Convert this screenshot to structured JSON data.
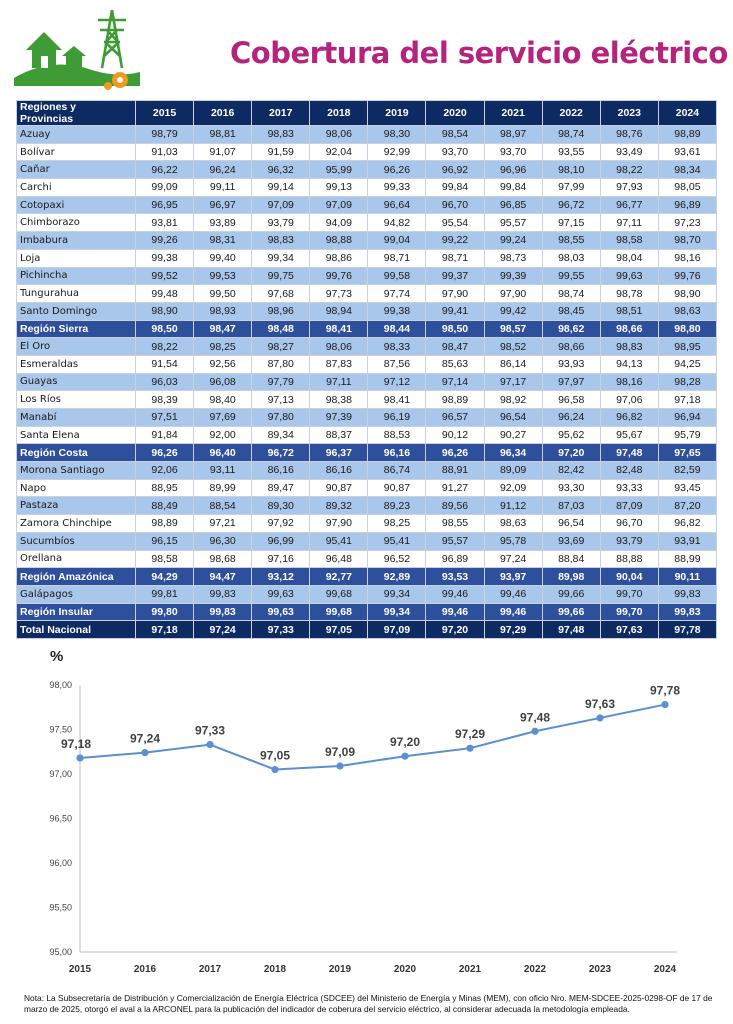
{
  "title": "Cobertura del servicio eléctrico",
  "table": {
    "header": [
      "Regiones y Provincias",
      "2015",
      "2016",
      "2017",
      "2018",
      "2019",
      "2020",
      "2021",
      "2022",
      "2023",
      "2024"
    ],
    "rows": [
      {
        "kind": "odd",
        "name": "Azuay",
        "values": [
          "98,79",
          "98,81",
          "98,83",
          "98,06",
          "98,30",
          "98,54",
          "98,97",
          "98,74",
          "98,76",
          "98,89"
        ]
      },
      {
        "kind": "even",
        "name": "Bolívar",
        "values": [
          "91,03",
          "91,07",
          "91,59",
          "92,04",
          "92,99",
          "93,70",
          "93,70",
          "93,55",
          "93,49",
          "93,61"
        ]
      },
      {
        "kind": "odd",
        "name": "Cañar",
        "values": [
          "96,22",
          "96,24",
          "96,32",
          "95,99",
          "96,26",
          "96,92",
          "96,96",
          "98,10",
          "98,22",
          "98,34"
        ]
      },
      {
        "kind": "even",
        "name": "Carchi",
        "values": [
          "99,09",
          "99,11",
          "99,14",
          "99,13",
          "99,33",
          "99,84",
          "99,84",
          "97,99",
          "97,93",
          "98,05"
        ]
      },
      {
        "kind": "odd",
        "name": "Cotopaxi",
        "values": [
          "96,95",
          "96,97",
          "97,09",
          "97,09",
          "96,64",
          "96,70",
          "96,85",
          "96,72",
          "96,77",
          "96,89"
        ]
      },
      {
        "kind": "even",
        "name": "Chimborazo",
        "values": [
          "93,81",
          "93,89",
          "93,79",
          "94,09",
          "94,82",
          "95,54",
          "95,57",
          "97,15",
          "97,11",
          "97,23"
        ]
      },
      {
        "kind": "odd",
        "name": "Imbabura",
        "values": [
          "99,26",
          "98,31",
          "98,83",
          "98,88",
          "99,04",
          "99,22",
          "99,24",
          "98,55",
          "98,58",
          "98,70"
        ]
      },
      {
        "kind": "even",
        "name": "Loja",
        "values": [
          "99,38",
          "99,40",
          "99,34",
          "98,86",
          "98,71",
          "98,71",
          "98,73",
          "98,03",
          "98,04",
          "98,16"
        ]
      },
      {
        "kind": "odd",
        "name": "Pichincha",
        "values": [
          "99,52",
          "99,53",
          "99,75",
          "99,76",
          "99,58",
          "99,37",
          "99,39",
          "99,55",
          "99,63",
          "99,76"
        ]
      },
      {
        "kind": "even",
        "name": "Tungurahua",
        "values": [
          "99,48",
          "99,50",
          "97,68",
          "97,73",
          "97,74",
          "97,90",
          "97,90",
          "98,74",
          "98,78",
          "98,90"
        ]
      },
      {
        "kind": "odd",
        "name": "Santo Domingo",
        "values": [
          "98,90",
          "98,93",
          "98,96",
          "98,94",
          "99,38",
          "99,41",
          "99,42",
          "98,45",
          "98,51",
          "98,63"
        ]
      },
      {
        "kind": "region",
        "name": "Región Sierra",
        "values": [
          "98,50",
          "98,47",
          "98,48",
          "98,41",
          "98,44",
          "98,50",
          "98,57",
          "98,62",
          "98,66",
          "98,80"
        ]
      },
      {
        "kind": "odd",
        "name": "El Oro",
        "values": [
          "98,22",
          "98,25",
          "98,27",
          "98,06",
          "98,33",
          "98,47",
          "98,52",
          "98,66",
          "98,83",
          "98,95"
        ]
      },
      {
        "kind": "even",
        "name": "Esmeraldas",
        "values": [
          "91,54",
          "92,56",
          "87,80",
          "87,83",
          "87,56",
          "85,63",
          "86,14",
          "93,93",
          "94,13",
          "94,25"
        ]
      },
      {
        "kind": "odd",
        "name": "Guayas",
        "values": [
          "96,03",
          "96,08",
          "97,79",
          "97,11",
          "97,12",
          "97,14",
          "97,17",
          "97,97",
          "98,16",
          "98,28"
        ]
      },
      {
        "kind": "even",
        "name": "Los Ríos",
        "values": [
          "98,39",
          "98,40",
          "97,13",
          "98,38",
          "98,41",
          "98,89",
          "98,92",
          "96,58",
          "97,06",
          "97,18"
        ]
      },
      {
        "kind": "odd",
        "name": "Manabí",
        "values": [
          "97,51",
          "97,69",
          "97,80",
          "97,39",
          "96,19",
          "96,57",
          "96,54",
          "96,24",
          "96,82",
          "96,94"
        ]
      },
      {
        "kind": "even",
        "name": "Santa Elena",
        "values": [
          "91,84",
          "92,00",
          "89,34",
          "88,37",
          "88,53",
          "90,12",
          "90,27",
          "95,62",
          "95,67",
          "95,79"
        ]
      },
      {
        "kind": "region",
        "name": "Región Costa",
        "values": [
          "96,26",
          "96,40",
          "96,72",
          "96,37",
          "96,16",
          "96,26",
          "96,34",
          "97,20",
          "97,48",
          "97,65"
        ]
      },
      {
        "kind": "odd",
        "name": "Morona Santiago",
        "values": [
          "92,06",
          "93,11",
          "86,16",
          "86,16",
          "86,74",
          "88,91",
          "89,09",
          "82,42",
          "82,48",
          "82,59"
        ]
      },
      {
        "kind": "even",
        "name": "Napo",
        "values": [
          "88,95",
          "89,99",
          "89,47",
          "90,87",
          "90,87",
          "91,27",
          "92,09",
          "93,30",
          "93,33",
          "93,45"
        ]
      },
      {
        "kind": "odd",
        "name": "Pastaza",
        "values": [
          "88,49",
          "88,54",
          "89,30",
          "89,32",
          "89,23",
          "89,56",
          "91,12",
          "87,03",
          "87,09",
          "87,20"
        ]
      },
      {
        "kind": "even",
        "name": "Zamora Chinchipe",
        "values": [
          "98,89",
          "97,21",
          "97,92",
          "97,90",
          "98,25",
          "98,55",
          "98,63",
          "96,54",
          "96,70",
          "96,82"
        ]
      },
      {
        "kind": "odd",
        "name": "Sucumbíos",
        "values": [
          "96,15",
          "96,30",
          "96,99",
          "95,41",
          "95,41",
          "95,57",
          "95,78",
          "93,69",
          "93,79",
          "93,91"
        ]
      },
      {
        "kind": "even",
        "name": "Orellana",
        "values": [
          "98,58",
          "98,68",
          "97,16",
          "96,48",
          "96,52",
          "96,89",
          "97,24",
          "88,84",
          "88,88",
          "88,99"
        ]
      },
      {
        "kind": "region",
        "name": "Región Amazónica",
        "values": [
          "94,29",
          "94,47",
          "93,12",
          "92,77",
          "92,89",
          "93,53",
          "93,97",
          "89,98",
          "90,04",
          "90,11"
        ]
      },
      {
        "kind": "odd",
        "name": "Galápagos",
        "values": [
          "99,81",
          "99,83",
          "99,63",
          "99,68",
          "99,34",
          "99,46",
          "99,46",
          "99,66",
          "99,70",
          "99,83"
        ]
      },
      {
        "kind": "region",
        "name": "Región Insular",
        "values": [
          "99,80",
          "99,83",
          "99,63",
          "99,68",
          "99,34",
          "99,46",
          "99,46",
          "99,66",
          "99,70",
          "99,83"
        ]
      },
      {
        "kind": "total",
        "name": "Total Nacional",
        "values": [
          "97,18",
          "97,24",
          "97,33",
          "97,05",
          "97,09",
          "97,20",
          "97,29",
          "97,48",
          "97,63",
          "97,78"
        ]
      }
    ]
  },
  "chart_data": {
    "type": "line",
    "ylabel": "%",
    "x": [
      "2015",
      "2016",
      "2017",
      "2018",
      "2019",
      "2020",
      "2021",
      "2022",
      "2023",
      "2024"
    ],
    "series": [
      {
        "values": [
          97.18,
          97.24,
          97.33,
          97.05,
          97.09,
          97.2,
          97.29,
          97.48,
          97.63,
          97.78
        ]
      }
    ],
    "data_labels": [
      "97,18",
      "97,24",
      "97,33",
      "97,05",
      "97,09",
      "97,20",
      "97,29",
      "97,48",
      "97,63",
      "97,78"
    ],
    "ylim": [
      95.0,
      98.0
    ],
    "yticks": [
      "95,00",
      "95,50",
      "96,00",
      "96,50",
      "97,00",
      "97,50",
      "98,00"
    ],
    "grid": false,
    "color": "#5b8fd0"
  },
  "note": "Nota: La Subsecretaría de Distribución y Comercialización de Energía Eléctrica (SDCEE) del Ministerio de Energía y Minas (MEM), con oficio Nro. MEM-SDCEE-2025-0298-OF de 17 de marzo de 2025, otorgó el aval a la ARCONEL para la publicación del indicador de coberura del servicio eléctrico, al considerar adecuada la metodología empleada."
}
